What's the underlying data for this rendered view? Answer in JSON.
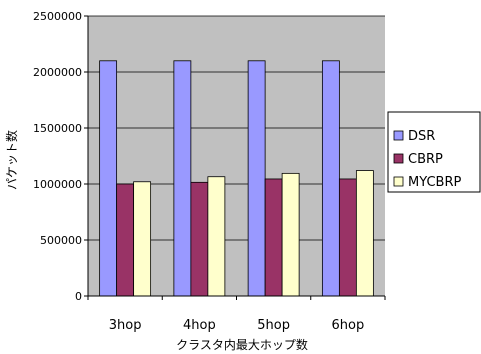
{
  "chart_data": {
    "type": "bar",
    "categories": [
      "3hop",
      "4hop",
      "5hop",
      "6hop"
    ],
    "series": [
      {
        "name": "DSR",
        "values": [
          2100000,
          2100000,
          2100000,
          2100000
        ]
      },
      {
        "name": "CBRP",
        "values": [
          1000000,
          1015000,
          1045000,
          1045000
        ]
      },
      {
        "name": "MYCBRP",
        "values": [
          1020000,
          1065000,
          1095000,
          1120000
        ]
      }
    ],
    "xlabel": "クラスタ内最大ホップ数",
    "ylabel": "パケット数",
    "ylim": [
      0,
      2500000
    ],
    "yticks": [
      0,
      500000,
      1000000,
      1500000,
      2000000,
      2500000
    ],
    "ytick_labels": [
      "0",
      "500000",
      "1000000",
      "1500000",
      "2000000",
      "2500000"
    ],
    "grid": true,
    "legend_position": "right",
    "colors": {
      "plot_background": "#c0c0c0",
      "DSR": "#9999ff",
      "CBRP": "#993366",
      "MYCBRP": "#ffffcc"
    }
  }
}
